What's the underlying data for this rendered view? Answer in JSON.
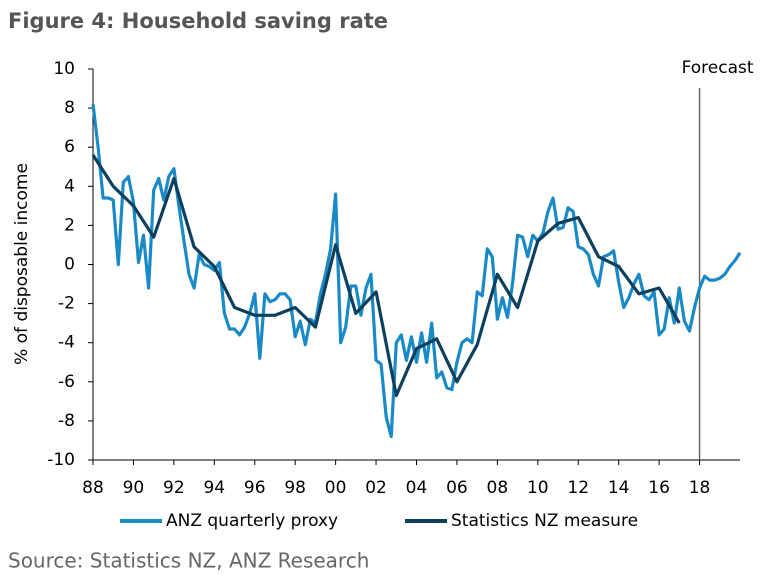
{
  "chart_data": {
    "type": "line",
    "title": "Figure 4: Household saving rate",
    "y_label": "% of disposable income",
    "source": "Source: Statistics NZ, ANZ Research",
    "annotations": [
      {
        "text": "Forecast",
        "x": 2018
      }
    ],
    "xlim": [
      1988,
      2020
    ],
    "xticks": [
      {
        "value": 1988,
        "label": "88"
      },
      {
        "value": 1990,
        "label": "90"
      },
      {
        "value": 1992,
        "label": "92"
      },
      {
        "value": 1994,
        "label": "94"
      },
      {
        "value": 1996,
        "label": "96"
      },
      {
        "value": 1998,
        "label": "98"
      },
      {
        "value": 2000,
        "label": "00"
      },
      {
        "value": 2002,
        "label": "02"
      },
      {
        "value": 2004,
        "label": "04"
      },
      {
        "value": 2006,
        "label": "06"
      },
      {
        "value": 2008,
        "label": "08"
      },
      {
        "value": 2010,
        "label": "10"
      },
      {
        "value": 2012,
        "label": "12"
      },
      {
        "value": 2014,
        "label": "14"
      },
      {
        "value": 2016,
        "label": "16"
      },
      {
        "value": 2018,
        "label": "18"
      }
    ],
    "ylim": [
      -10,
      10
    ],
    "yticks": [
      -10,
      -8,
      -6,
      -4,
      -2,
      0,
      2,
      4,
      6,
      8,
      10
    ],
    "series": [
      {
        "name": "ANZ quarterly proxy",
        "color": "#1a8ac6",
        "x": [
          1988,
          1988.25,
          1988.5,
          1988.75,
          1989,
          1989.25,
          1989.5,
          1989.75,
          1990,
          1990.25,
          1990.5,
          1990.75,
          1991,
          1991.25,
          1991.5,
          1991.75,
          1992,
          1992.25,
          1992.5,
          1992.75,
          1993,
          1993.25,
          1993.5,
          1993.75,
          1994,
          1994.25,
          1994.5,
          1994.75,
          1995,
          1995.25,
          1995.5,
          1995.75,
          1996,
          1996.25,
          1996.5,
          1996.75,
          1997,
          1997.25,
          1997.5,
          1997.75,
          1998,
          1998.25,
          1998.5,
          1998.75,
          1999,
          1999.25,
          1999.5,
          1999.75,
          2000,
          2000.25,
          2000.5,
          2000.75,
          2001,
          2001.25,
          2001.5,
          2001.75,
          2002,
          2002.25,
          2002.5,
          2002.75,
          2003,
          2003.25,
          2003.5,
          2003.75,
          2004,
          2004.25,
          2004.5,
          2004.75,
          2005,
          2005.25,
          2005.5,
          2005.75,
          2006,
          2006.25,
          2006.5,
          2006.75,
          2007,
          2007.25,
          2007.5,
          2007.75,
          2008,
          2008.25,
          2008.5,
          2008.75,
          2009,
          2009.25,
          2009.5,
          2009.75,
          2010,
          2010.25,
          2010.5,
          2010.75,
          2011,
          2011.25,
          2011.5,
          2011.75,
          2012,
          2012.25,
          2012.5,
          2012.75,
          2013,
          2013.25,
          2013.5,
          2013.75,
          2014,
          2014.25,
          2014.5,
          2014.75,
          2015,
          2015.25,
          2015.5,
          2015.75,
          2016,
          2016.25,
          2016.5,
          2016.75,
          2017,
          2017.25,
          2017.5,
          2017.75,
          2018,
          2018.25,
          2018.5,
          2018.75,
          2019,
          2019.25,
          2019.5,
          2019.75,
          2020
        ],
        "values": [
          8.2,
          6,
          3.4,
          3.4,
          3.3,
          0,
          4.2,
          4.5,
          3.2,
          0.1,
          1.5,
          -1.2,
          3.8,
          4.4,
          3.3,
          4.5,
          4.9,
          3.0,
          1.2,
          -0.5,
          -1.2,
          0.5,
          0,
          -0.1,
          -0.3,
          0.1,
          -2.5,
          -3.3,
          -3.3,
          -3.6,
          -3.2,
          -2.5,
          -1.5,
          -4.8,
          -1.5,
          -1.9,
          -1.8,
          -1.5,
          -1.5,
          -1.8,
          -3.7,
          -2.9,
          -4.1,
          -2.8,
          -3.0,
          -1.5,
          -0.5,
          0.8,
          3.6,
          -4.0,
          -3.2,
          -1.1,
          -1.1,
          -2.6,
          -1.2,
          -0.5,
          -4.9,
          -5.1,
          -7.8,
          -8.8,
          -4.0,
          -3.6,
          -4.9,
          -3.7,
          -5.0,
          -3.5,
          -5.0,
          -3.0,
          -5.8,
          -5.5,
          -6.3,
          -6.4,
          -5.0,
          -4.0,
          -3.8,
          -4.0,
          -1.4,
          -1.6,
          0.8,
          0.4,
          -2.8,
          -1.7,
          -2.7,
          -1.0,
          1.5,
          1.4,
          0.4,
          1.5,
          1.2,
          1.6,
          2.7,
          3.4,
          1.8,
          1.9,
          2.9,
          2.7,
          0.9,
          0.8,
          0.5,
          -0.5,
          -1.1,
          0.4,
          0.5,
          0.7,
          -0.9,
          -2.2,
          -1.7,
          -1.0,
          -0.5,
          -1.6,
          -1.8,
          -1.4,
          -3.6,
          -3.3,
          -1.7,
          -3.0,
          -1.2,
          -2.9,
          -3.4,
          -2.2,
          -1.2,
          -0.6,
          -0.8,
          -0.8,
          -0.7,
          -0.5,
          -0.1,
          0.2,
          0.6
        ]
      },
      {
        "name": "Statistics NZ measure",
        "color": "#0d3f5e",
        "x": [
          1988,
          1989,
          1990,
          1991,
          1992,
          1993,
          1994,
          1995,
          1996,
          1997,
          1998,
          1999,
          2000,
          2001,
          2002,
          2003,
          2004,
          2005,
          2006,
          2007,
          2008,
          2009,
          2010,
          2011,
          2012,
          2013,
          2014,
          2015,
          2016,
          2017
        ],
        "values": [
          5.6,
          4.0,
          3.0,
          1.4,
          4.4,
          0.9,
          -0.1,
          -2.2,
          -2.6,
          -2.6,
          -2.2,
          -3.2,
          1.0,
          -2.5,
          -1.4,
          -6.7,
          -4.3,
          -3.8,
          -6.0,
          -4.1,
          -0.5,
          -2.2,
          1.2,
          2.1,
          2.4,
          0.4,
          -0.1,
          -1.5,
          -1.2,
          -3.0
        ]
      }
    ]
  }
}
